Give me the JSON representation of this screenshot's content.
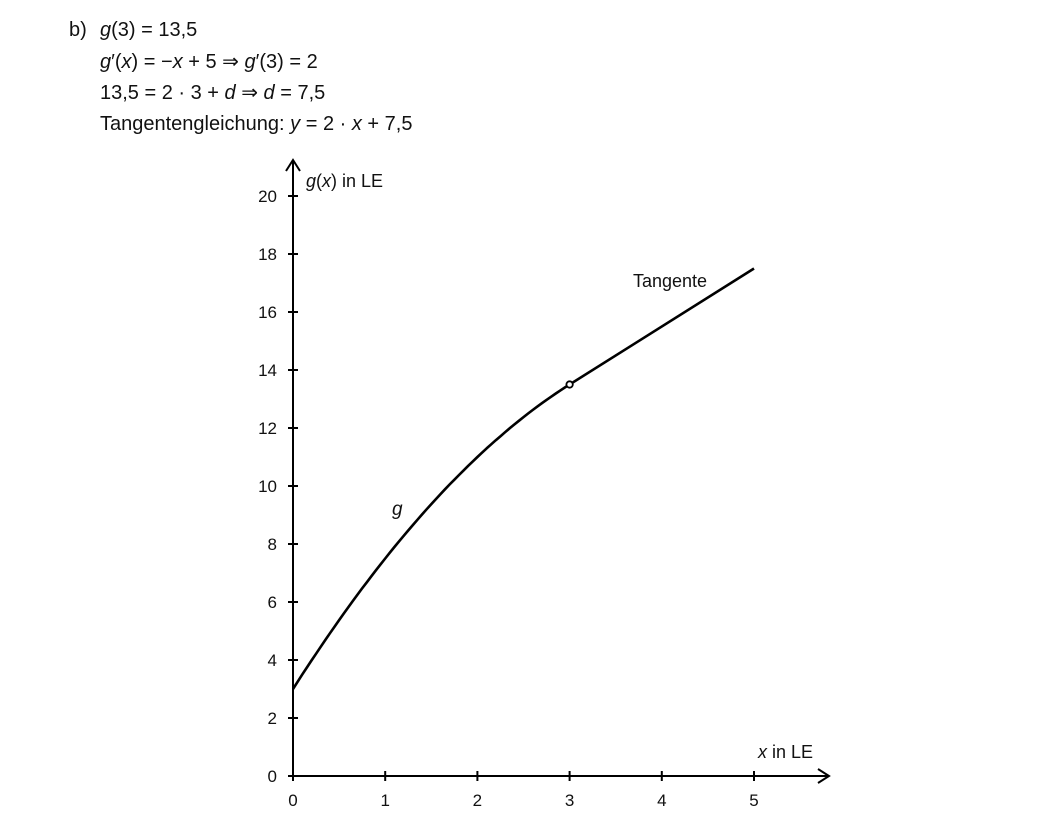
{
  "solution": {
    "label": "b)",
    "lines": [
      [
        {
          "t": "g",
          "i": true
        },
        {
          "t": "(3) = 13,5",
          "i": false
        }
      ],
      [
        {
          "t": "g",
          "i": true
        },
        {
          "t": "′(",
          "i": false
        },
        {
          "t": "x",
          "i": true
        },
        {
          "t": ") = −",
          "i": false
        },
        {
          "t": "x",
          "i": true
        },
        {
          "t": " + 5  ⇒  ",
          "i": false
        },
        {
          "t": "g",
          "i": true
        },
        {
          "t": "′(3) = 2",
          "i": false
        }
      ],
      [
        {
          "t": "13,5 = 2 · 3 + ",
          "i": false
        },
        {
          "t": "d",
          "i": true
        },
        {
          "t": "  ⇒  ",
          "i": false
        },
        {
          "t": "d",
          "i": true
        },
        {
          "t": " = 7,5",
          "i": false
        }
      ],
      [
        {
          "t": "Tangentengleichung: ",
          "i": false
        },
        {
          "t": "y",
          "i": true
        },
        {
          "t": " = 2 · ",
          "i": false
        },
        {
          "t": "x",
          "i": true
        },
        {
          "t": " + 7,5",
          "i": false
        }
      ]
    ]
  },
  "chart_data": {
    "type": "line",
    "xlabel": [
      {
        "t": "x",
        "i": true
      },
      {
        "t": " in LE",
        "i": false
      }
    ],
    "ylabel": [
      {
        "t": "g",
        "i": true
      },
      {
        "t": "(",
        "i": false
      },
      {
        "t": "x",
        "i": true
      },
      {
        "t": ") in LE",
        "i": false
      }
    ],
    "xlim": [
      0,
      5
    ],
    "ylim": [
      0,
      20
    ],
    "xticks": [
      0,
      1,
      2,
      3,
      4,
      5
    ],
    "yticks": [
      0,
      2,
      4,
      6,
      8,
      10,
      12,
      14,
      16,
      18,
      20
    ],
    "grid": false,
    "series": [
      {
        "name": "g",
        "x": [
          0,
          0.5,
          1,
          1.5,
          2,
          2.5,
          3
        ],
        "y": [
          3,
          5.375,
          7.5,
          9.375,
          11,
          12.375,
          13.5
        ]
      },
      {
        "name": "Tangente",
        "x": [
          3,
          5
        ],
        "y": [
          13.5,
          17.5
        ]
      }
    ],
    "points": [
      {
        "x": 3,
        "y": 13.5
      }
    ],
    "color": "#000000"
  }
}
